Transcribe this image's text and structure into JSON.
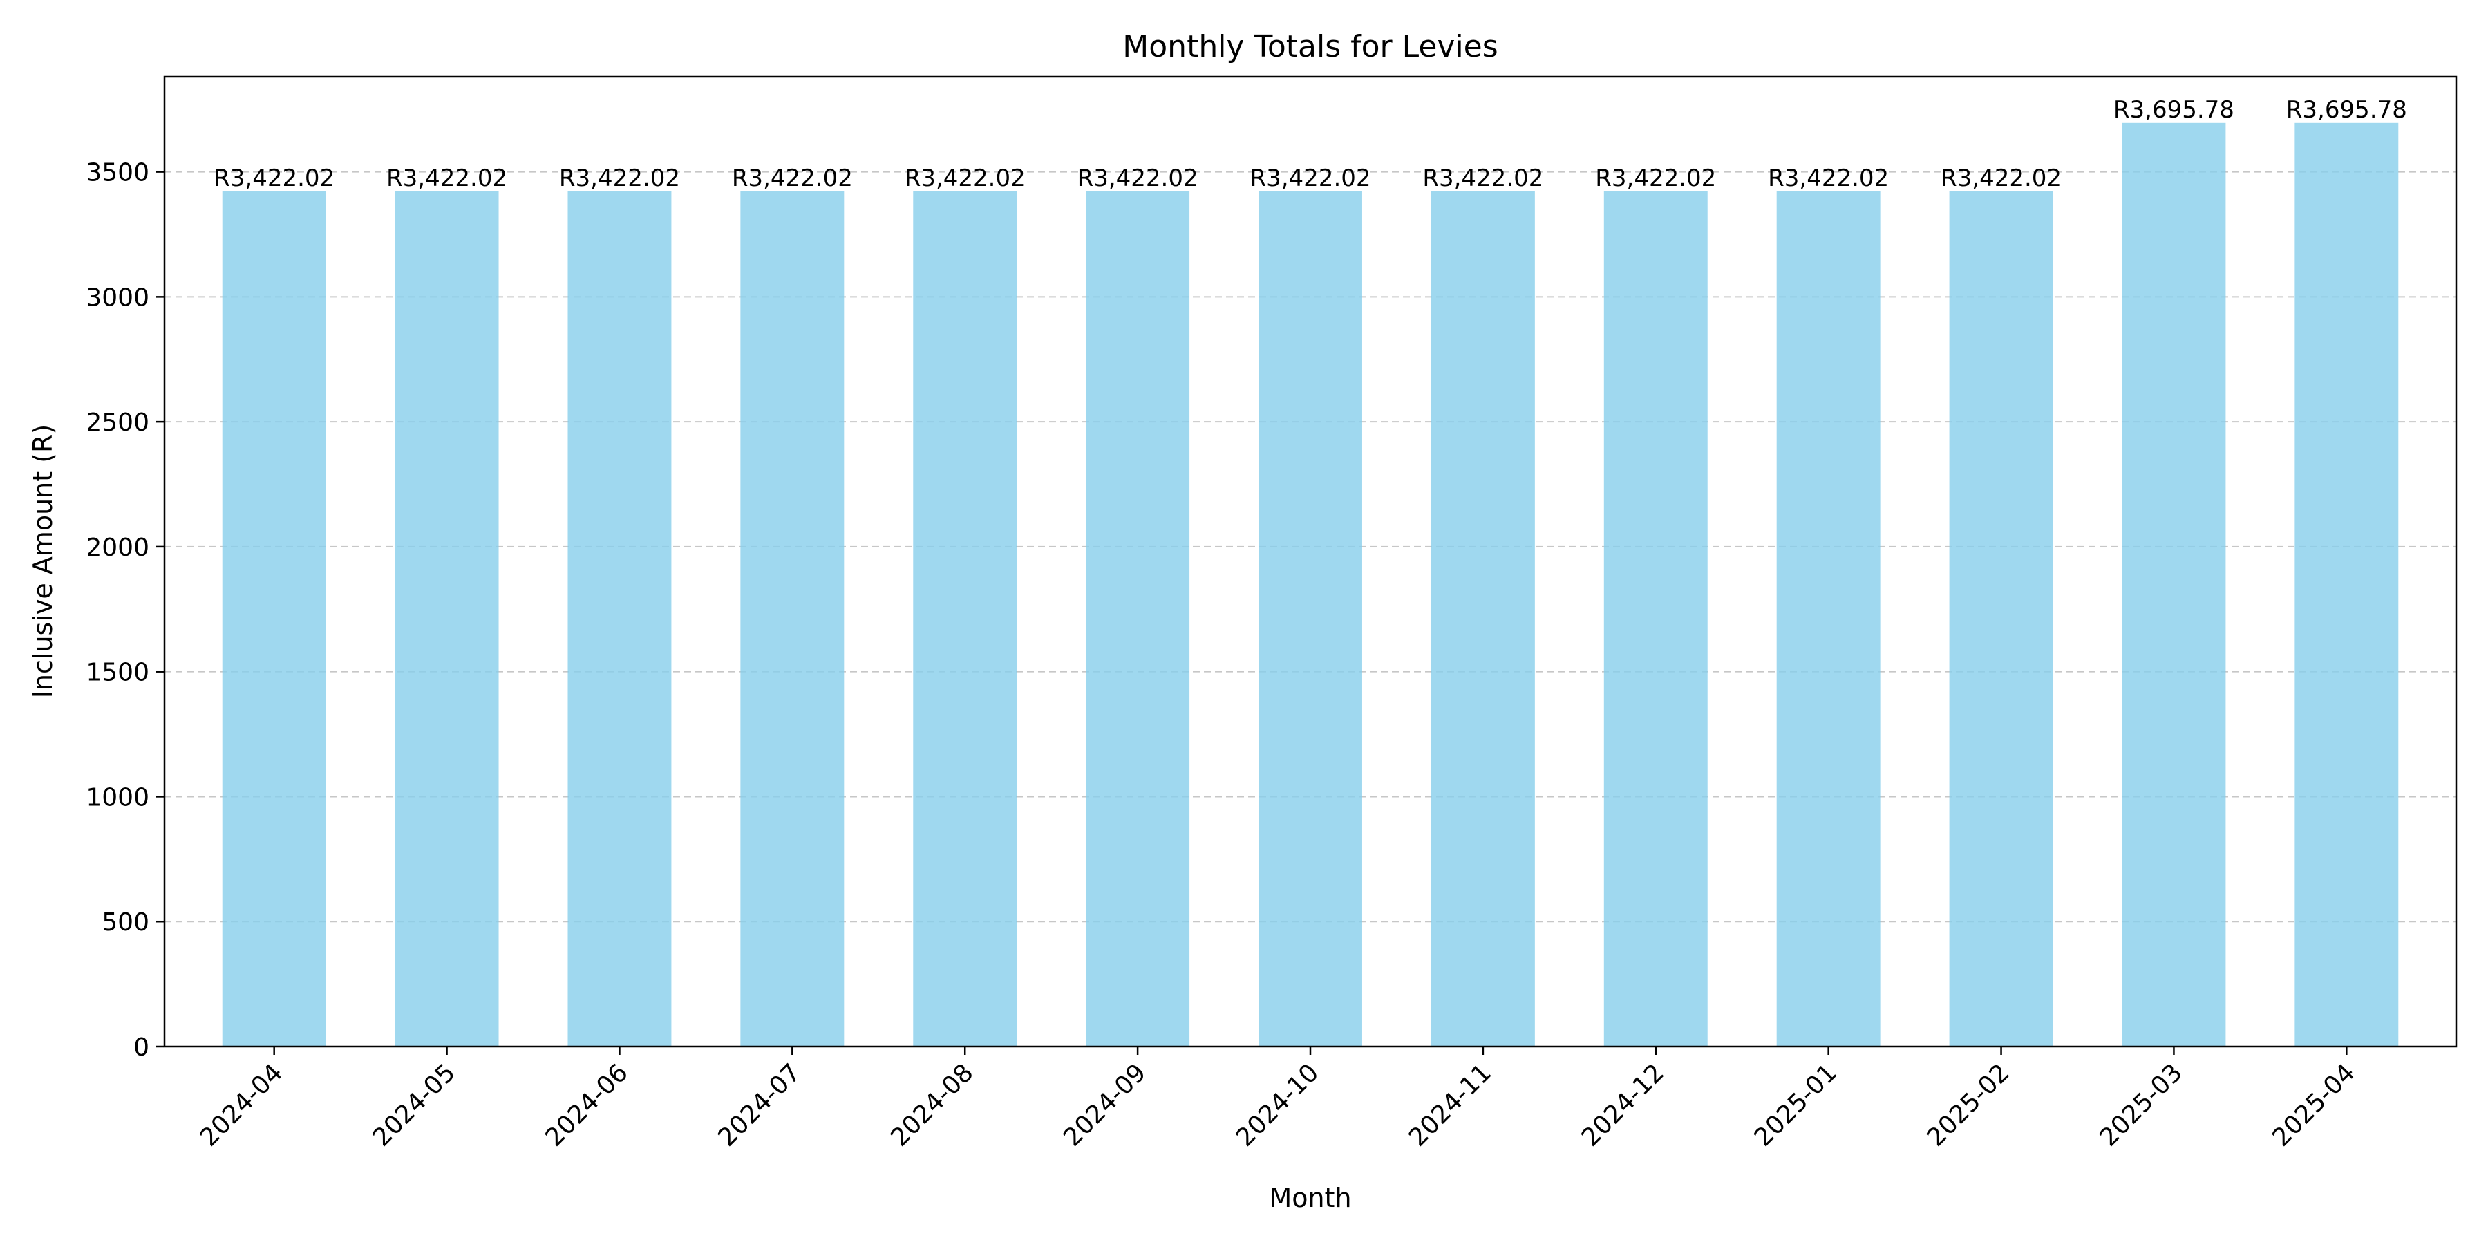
{
  "chart_data": {
    "type": "bar",
    "title": "Monthly Totals for Levies",
    "xlabel": "Month",
    "ylabel": "Inclusive Amount (R)",
    "categories": [
      "2024-04",
      "2024-05",
      "2024-06",
      "2024-07",
      "2024-08",
      "2024-09",
      "2024-10",
      "2024-11",
      "2024-12",
      "2025-01",
      "2025-02",
      "2025-03",
      "2025-04"
    ],
    "values": [
      3422.02,
      3422.02,
      3422.02,
      3422.02,
      3422.02,
      3422.02,
      3422.02,
      3422.02,
      3422.02,
      3422.02,
      3422.02,
      3695.78,
      3695.78
    ],
    "data_labels": [
      "R3,422.02",
      "R3,422.02",
      "R3,422.02",
      "R3,422.02",
      "R3,422.02",
      "R3,422.02",
      "R3,422.02",
      "R3,422.02",
      "R3,422.02",
      "R3,422.02",
      "R3,422.02",
      "R3,695.78",
      "R3,695.78"
    ],
    "ylim": [
      0,
      3880.57
    ],
    "yticks": [
      0,
      500,
      1000,
      1500,
      2000,
      2500,
      3000,
      3500
    ],
    "grid": {
      "y": true,
      "x": false,
      "style": "dashed"
    },
    "legend": "none",
    "colors": {
      "bar": "#87CEEB",
      "grid": "#b0b0b0",
      "axis": "#000000"
    }
  }
}
